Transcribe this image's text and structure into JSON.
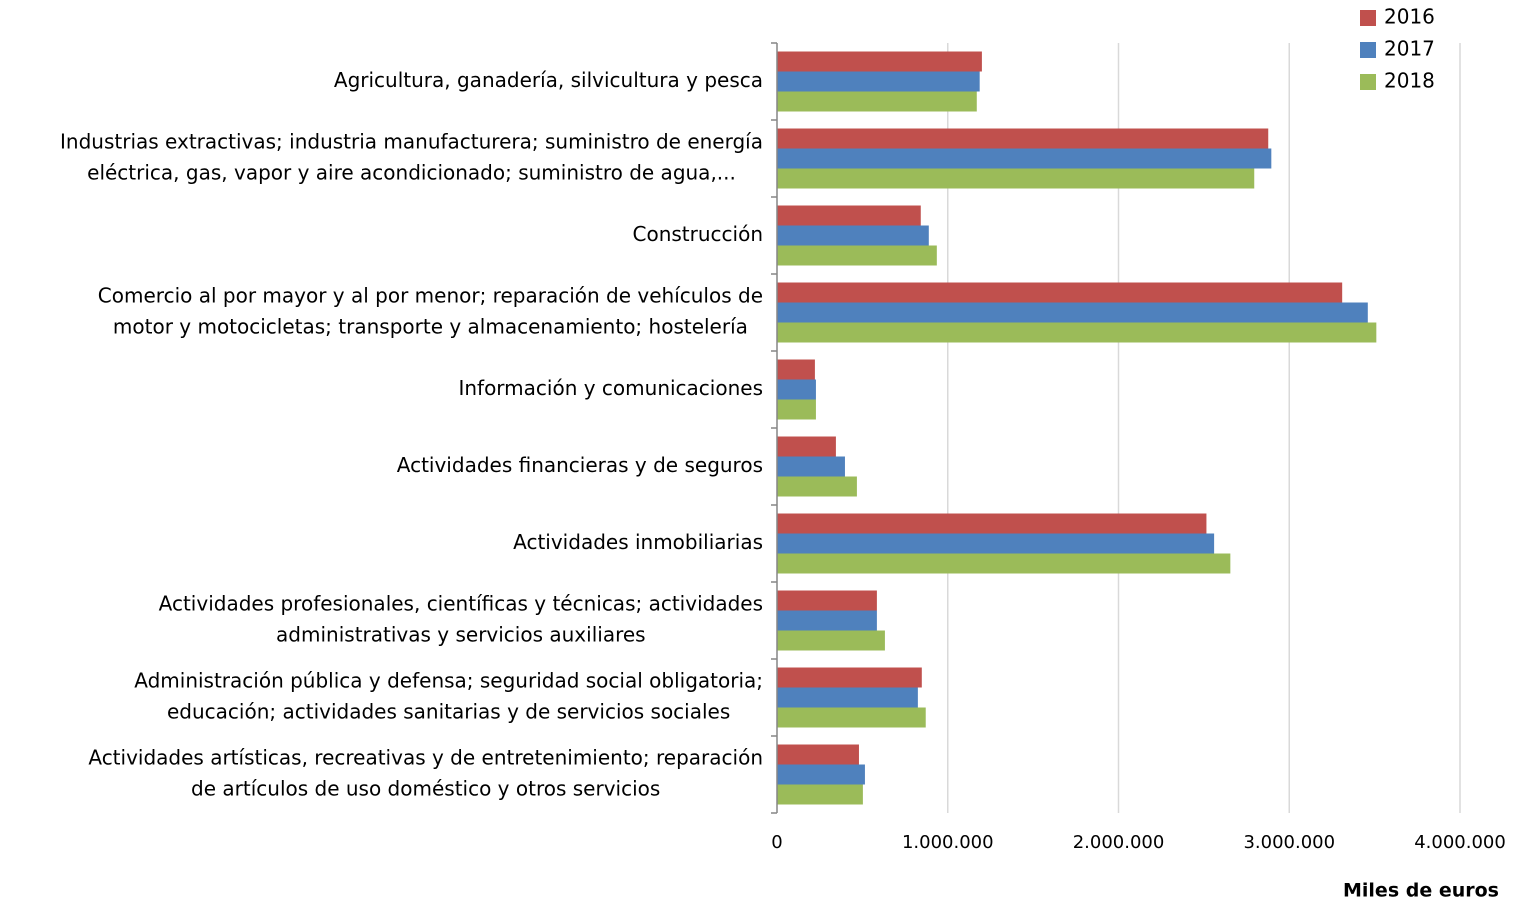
{
  "chart_data": {
    "type": "bar",
    "orientation": "horizontal",
    "x_label": "Miles de euros",
    "categories": [
      [
        "Agricultura, ganadería, silvicultura y pesca"
      ],
      [
        "Industrias extractivas; industria manufacturera; suministro de energía",
        "eléctrica, gas, vapor y aire acondicionado; suministro de agua,..."
      ],
      [
        "Construcción"
      ],
      [
        "Comercio al por mayor y al por menor; reparación de vehículos de",
        "motor y motocicletas; transporte y almacenamiento; hostelería"
      ],
      [
        "Información y comunicaciones"
      ],
      [
        "Actividades financieras y de seguros"
      ],
      [
        "Actividades inmobiliarias"
      ],
      [
        "Actividades profesionales, científicas y técnicas; actividades",
        "administrativas y servicios auxiliares"
      ],
      [
        "Administración pública y defensa; seguridad social obligatoria;",
        "educación; actividades sanitarias y de servicios sociales"
      ],
      [
        "Actividades artísticas, recreativas y de entretenimiento; reparación",
        "de artículos de uso doméstico y otros servicios"
      ]
    ],
    "series": [
      {
        "name": "2016",
        "color": "#c0504d",
        "values": [
          1200000,
          2877000,
          842000,
          3310000,
          222000,
          345000,
          2515000,
          585000,
          848000,
          480000
        ]
      },
      {
        "name": "2017",
        "color": "#4f81bd",
        "values": [
          1187000,
          2895000,
          889000,
          3460000,
          228000,
          398000,
          2560000,
          585000,
          825000,
          515000
        ]
      },
      {
        "name": "2018",
        "color": "#9bbb59",
        "values": [
          1170000,
          2795000,
          936000,
          3510000,
          228000,
          468000,
          2655000,
          632000,
          871000,
          503000
        ]
      }
    ],
    "xlim": [
      0,
      4000000
    ],
    "xticks": [
      0,
      {
        "value": 1000000,
        "label": "1.000.000"
      },
      {
        "value": 2000000,
        "label": "2.000.000"
      },
      {
        "value": 3000000,
        "label": "3.000.000"
      },
      {
        "value": 4000000,
        "label": "4.000.000"
      }
    ],
    "grid": true,
    "legend": "top-right"
  }
}
